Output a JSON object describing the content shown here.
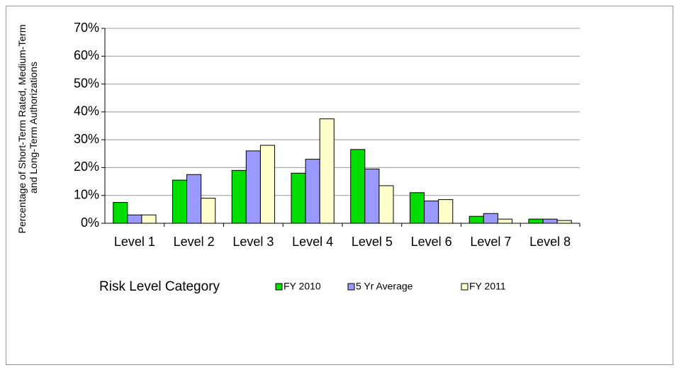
{
  "chart_data": {
    "type": "bar",
    "ylabel": [
      "Percentage of Short-Term Rated, Medium-Term",
      "and Long-Term Authorizations"
    ],
    "xlabel": "Risk Level Category",
    "categories": [
      "Level 1",
      "Level 2",
      "Level 3",
      "Level 4",
      "Level 5",
      "Level 6",
      "Level 7",
      "Level 8"
    ],
    "series": [
      {
        "name": "FY 2010",
        "color": "#00dd00",
        "values": [
          7.5,
          15.5,
          19,
          18,
          26.5,
          11,
          2.5,
          1.5
        ]
      },
      {
        "name": "5 Yr Average",
        "color": "#9999ff",
        "values": [
          3,
          17.5,
          26,
          23,
          19.5,
          8,
          3.5,
          1.5
        ]
      },
      {
        "name": "FY 2011",
        "color": "#ffffcc",
        "values": [
          3,
          9,
          28,
          37.5,
          13.5,
          8.5,
          1.5,
          1
        ]
      }
    ],
    "ylim": [
      0,
      70
    ],
    "yticks": [
      {
        "value": 0,
        "label": "0%"
      },
      {
        "value": 10,
        "label": "10%"
      },
      {
        "value": 20,
        "label": "20%"
      },
      {
        "value": 30,
        "label": "30%"
      },
      {
        "value": 40,
        "label": "40%"
      },
      {
        "value": 50,
        "label": "50%"
      },
      {
        "value": 60,
        "label": "60%"
      },
      {
        "value": 70,
        "label": "70%"
      }
    ],
    "grid": true
  }
}
